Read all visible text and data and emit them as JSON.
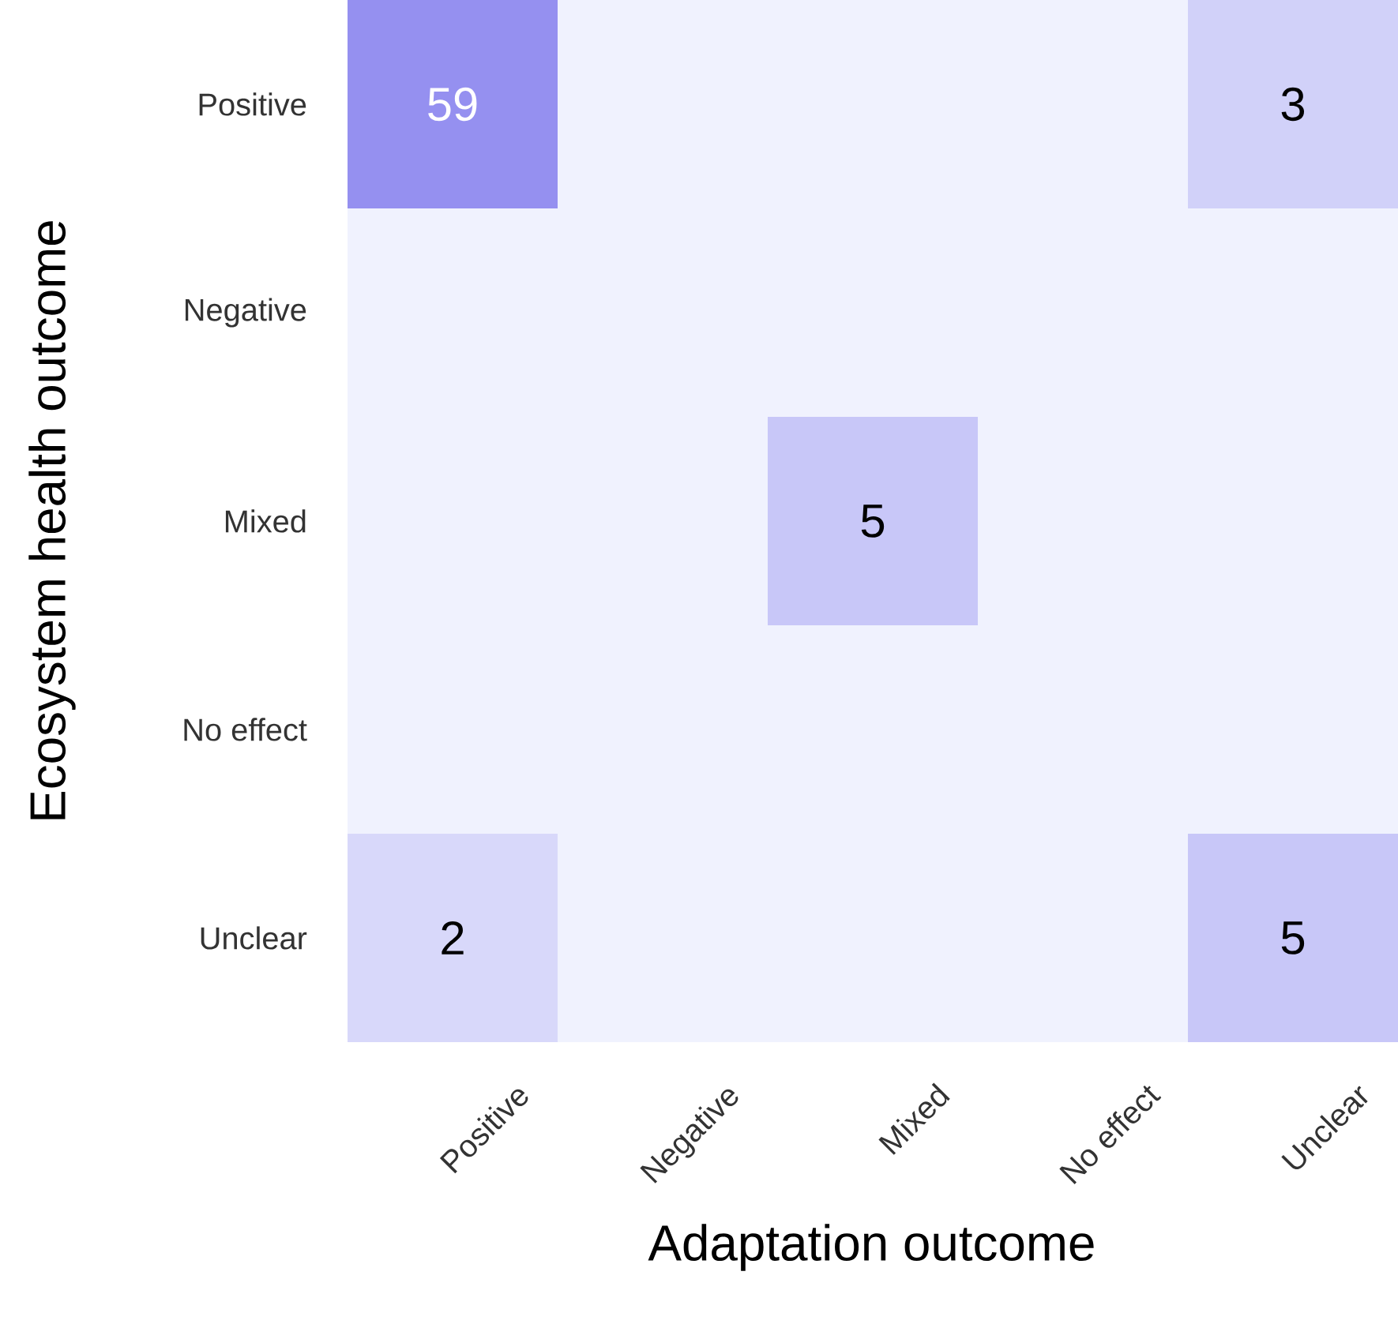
{
  "chart_data": {
    "type": "heatmap",
    "xlabel": "Adaptation outcome",
    "ylabel": "Ecosystem health outcome",
    "categories": [
      "Positive",
      "Negative",
      "Mixed",
      "No effect",
      "Unclear"
    ],
    "y_categories": [
      "Positive",
      "Negative",
      "Mixed",
      "No effect",
      "Unclear"
    ],
    "cells": [
      [
        59,
        null,
        null,
        null,
        3
      ],
      [
        null,
        null,
        null,
        null,
        null
      ],
      [
        null,
        null,
        5,
        null,
        null
      ],
      [
        null,
        null,
        null,
        null,
        null
      ],
      [
        2,
        null,
        null,
        null,
        5
      ]
    ],
    "colors": [
      "#f0f2fe",
      "#9590f0"
    ],
    "data_labels": true
  }
}
